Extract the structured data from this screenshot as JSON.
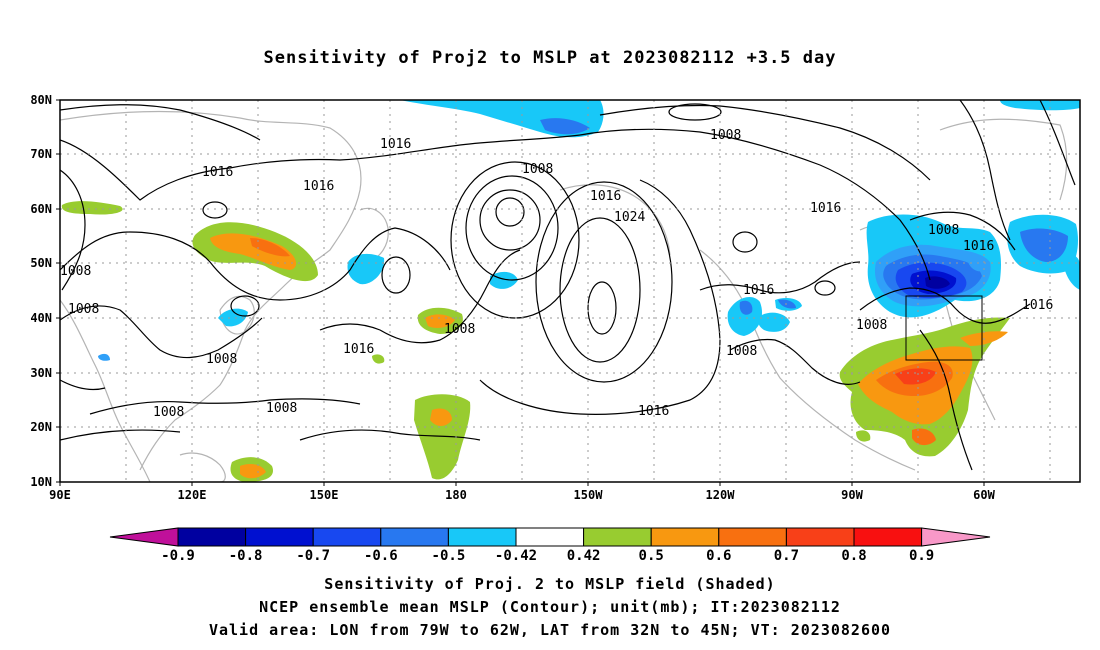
{
  "title": "Sensitivity of Proj2 to MSLP at 2023082112 +3.5 day",
  "map": {
    "lat_labels": [
      "80N",
      "70N",
      "60N",
      "50N",
      "40N",
      "30N",
      "20N",
      "10N"
    ],
    "lon_labels": [
      "90E",
      "120E",
      "150E",
      "180",
      "150W",
      "120W",
      "90W",
      "60W"
    ],
    "contour_labels": [
      "1016",
      "1016",
      "1016",
      "1008",
      "1008",
      "1016",
      "1024",
      "1008",
      "1016",
      "1008",
      "1016",
      "1008",
      "1008",
      "1008",
      "1016",
      "1016",
      "1008",
      "1016",
      "1008",
      "1008",
      "1016",
      "1008",
      "1016"
    ],
    "colors": {
      "neg_09": "#0000a0",
      "neg_08": "#0010d0",
      "neg_07": "#1848f0",
      "neg_06": "#2878f0",
      "neg_05": "#30a0f8",
      "neg_042": "#18c8f8",
      "pos_042": "#98cc30",
      "pos_05": "#f89810",
      "pos_06": "#f87010",
      "pos_07": "#f84018",
      "pos_08": "#f81010",
      "land_outline": "#b4b4b4",
      "contour": "#000000",
      "box": "#000000",
      "below_min": "#c0109a",
      "above_max": "#f898c8"
    }
  },
  "colorbar": {
    "labels": [
      "-0.9",
      "-0.8",
      "-0.7",
      "-0.6",
      "-0.5",
      "-0.42",
      "0.42",
      "0.5",
      "0.6",
      "0.7",
      "0.8",
      "0.9"
    ]
  },
  "footer": {
    "line1": "Sensitivity of Proj. 2 to MSLP field (Shaded)",
    "line2": "NCEP ensemble mean MSLP (Contour); unit(mb); IT:2023082112",
    "line3": "Valid area: LON from 79W to 62W, LAT from 32N to 45N; VT: 2023082600"
  }
}
